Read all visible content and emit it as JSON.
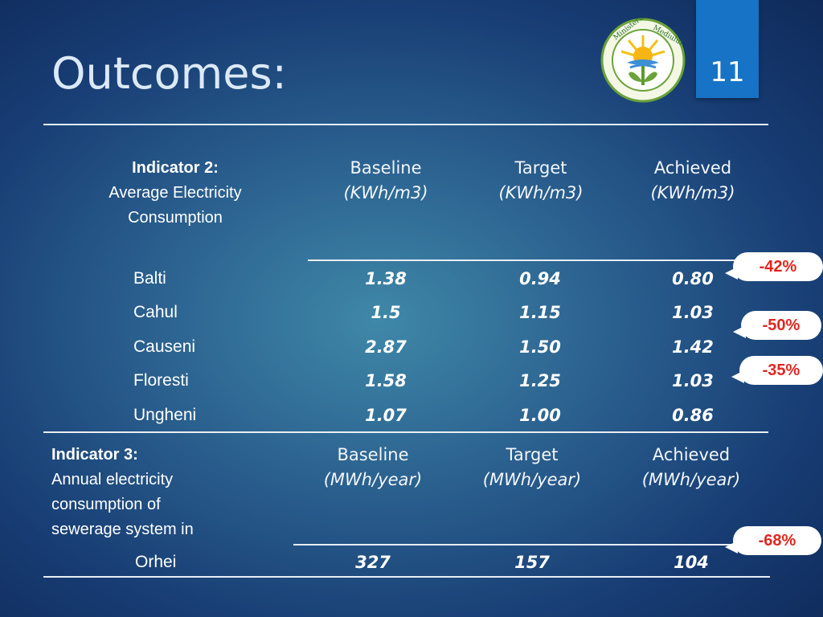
{
  "slide": {
    "title": "Outcomes:",
    "page_number": "11",
    "logo": {
      "text_left": "Ministerul",
      "text_right": "Mediului"
    }
  },
  "indicator2": {
    "label": "Indicator  2:",
    "desc_line1": "Average Electricity",
    "desc_line2": "Consumption",
    "columns": [
      {
        "name": "Baseline",
        "unit": "(KWh/m3)"
      },
      {
        "name": "Target",
        "unit": "(KWh/m3)"
      },
      {
        "name": "Achieved",
        "unit": "(KWh/m3)"
      }
    ],
    "rows": [
      {
        "city": "Balti",
        "baseline": "1.38",
        "target": "0.94",
        "achieved": "0.80"
      },
      {
        "city": "Cahul",
        "baseline": "1.5",
        "target": "1.15",
        "achieved": "1.03"
      },
      {
        "city": "Causeni",
        "baseline": "2.87",
        "target": "1.50",
        "achieved": "1.42"
      },
      {
        "city": "Floresti",
        "baseline": "1.58",
        "target": "1.25",
        "achieved": "1.03"
      },
      {
        "city": "Ungheni",
        "baseline": "1.07",
        "target": "1.00",
        "achieved": "0.86"
      }
    ]
  },
  "indicator3": {
    "label": "Indicator 3:",
    "desc_line1": "Annual electricity",
    "desc_line2": "consumption of",
    "desc_line3": "sewerage system in",
    "columns": [
      {
        "name": "Baseline",
        "unit": "(MWh/year)"
      },
      {
        "name": "Target",
        "unit": "(MWh/year)"
      },
      {
        "name": "Achieved",
        "unit": "(MWh/year)"
      }
    ],
    "rows": [
      {
        "city": "Orhei",
        "baseline": "327",
        "target": "157",
        "achieved": "104"
      }
    ]
  },
  "callouts": [
    "-42%",
    "-50%",
    "-35%",
    "-68%"
  ],
  "colors": {
    "tab": "#1673c6",
    "callout_text": "#e0261f",
    "background": "#1a4378"
  }
}
